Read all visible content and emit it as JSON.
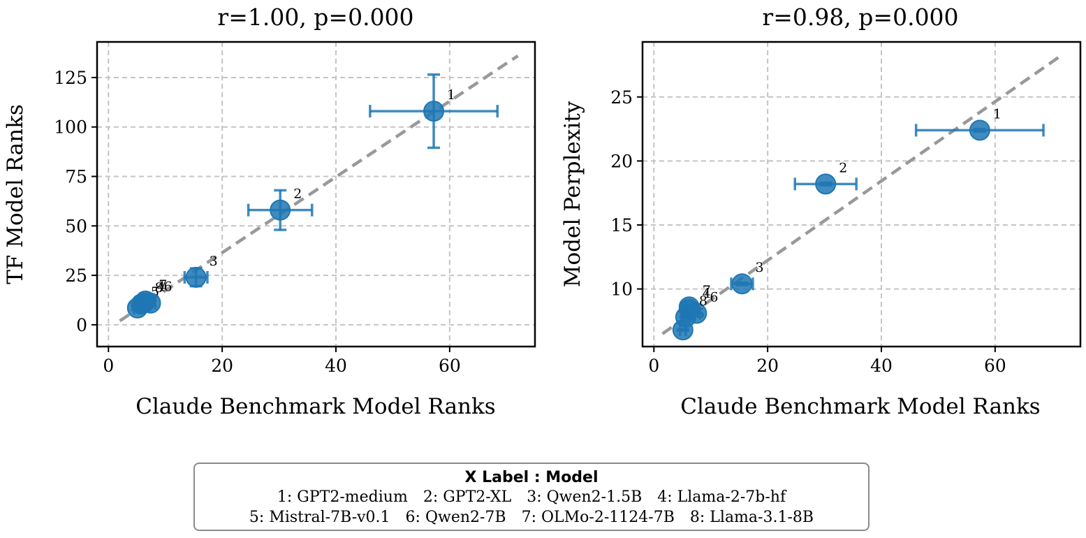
{
  "chart_data": [
    {
      "type": "scatter",
      "title": "r=1.00, p=0.000",
      "xlabel": "Claude Benchmark Model Ranks",
      "ylabel": "TF Model Ranks",
      "xlim": [
        -2,
        75
      ],
      "ylim": [
        -11,
        143
      ],
      "xticks": [
        0,
        20,
        40,
        60
      ],
      "yticks": [
        0,
        25,
        50,
        75,
        100,
        125
      ],
      "grid": true,
      "trend_line": {
        "x": [
          2,
          72
        ],
        "y": [
          2,
          136
        ],
        "style": "dashed",
        "color": "#999999"
      },
      "points": [
        {
          "label": "1",
          "x": 57.2,
          "y": 108,
          "xerr": 11.2,
          "yerr": 18.5
        },
        {
          "label": "2",
          "x": 30.2,
          "y": 58,
          "xerr": 5.6,
          "yerr": 10
        },
        {
          "label": "3",
          "x": 15.4,
          "y": 24,
          "xerr": 2.0,
          "yerr": 4.5
        },
        {
          "label": "4",
          "x": 6.2,
          "y": 11,
          "xerr": 0.8,
          "yerr": 1.2
        },
        {
          "label": "5",
          "x": 5.1,
          "y": 8.5,
          "xerr": 0.6,
          "yerr": 1.0
        },
        {
          "label": "6",
          "x": 7.4,
          "y": 11,
          "xerr": 0.8,
          "yerr": 1.2
        },
        {
          "label": "7",
          "x": 6.5,
          "y": 12,
          "xerr": 0.7,
          "yerr": 1.2
        },
        {
          "label": "8",
          "x": 5.8,
          "y": 10.5,
          "xerr": 0.7,
          "yerr": 1.2
        }
      ]
    },
    {
      "type": "scatter",
      "title": "r=0.98, p=0.000",
      "xlabel": "Claude Benchmark Model Ranks",
      "ylabel": "Model Perplexity",
      "xlim": [
        -2,
        75
      ],
      "ylim": [
        5.5,
        29.3
      ],
      "xticks": [
        0,
        20,
        40,
        60
      ],
      "yticks": [
        10,
        15,
        20,
        25
      ],
      "grid": true,
      "trend_line": {
        "x": [
          1.5,
          71.5
        ],
        "y": [
          6.5,
          28.2
        ],
        "style": "dashed",
        "color": "#999999"
      },
      "points": [
        {
          "label": "1",
          "x": 57.3,
          "y": 22.4,
          "xerr": 11.2,
          "yerr": 0.1
        },
        {
          "label": "2",
          "x": 30.2,
          "y": 18.2,
          "xerr": 5.4,
          "yerr": 0.1
        },
        {
          "label": "3",
          "x": 15.5,
          "y": 10.4,
          "xerr": 1.9,
          "yerr": 0.1
        },
        {
          "label": "4",
          "x": 6.2,
          "y": 8.4,
          "xerr": 0.6,
          "yerr": 0.05
        },
        {
          "label": "5",
          "x": 5.1,
          "y": 6.8,
          "xerr": 0.5,
          "yerr": 0.05
        },
        {
          "label": "6",
          "x": 7.5,
          "y": 8.1,
          "xerr": 0.6,
          "yerr": 0.05
        },
        {
          "label": "7",
          "x": 6.2,
          "y": 8.6,
          "xerr": 0.6,
          "yerr": 0.05
        },
        {
          "label": "8",
          "x": 5.6,
          "y": 7.8,
          "xerr": 0.5,
          "yerr": 0.05
        }
      ]
    }
  ],
  "colors": {
    "point": "#1f77b4",
    "trend": "#999999",
    "grid": "#c4c4c4"
  },
  "legend": {
    "title": "X Label :  Model",
    "rows": [
      [
        "1: GPT2-medium",
        "2: GPT2-XL",
        "3: Qwen2-1.5B",
        "4: Llama-2-7b-hf"
      ],
      [
        "5: Mistral-7B-v0.1",
        "6: Qwen2-7B",
        "7: OLMo-2-1124-7B",
        "8: Llama-3.1-8B"
      ]
    ]
  }
}
